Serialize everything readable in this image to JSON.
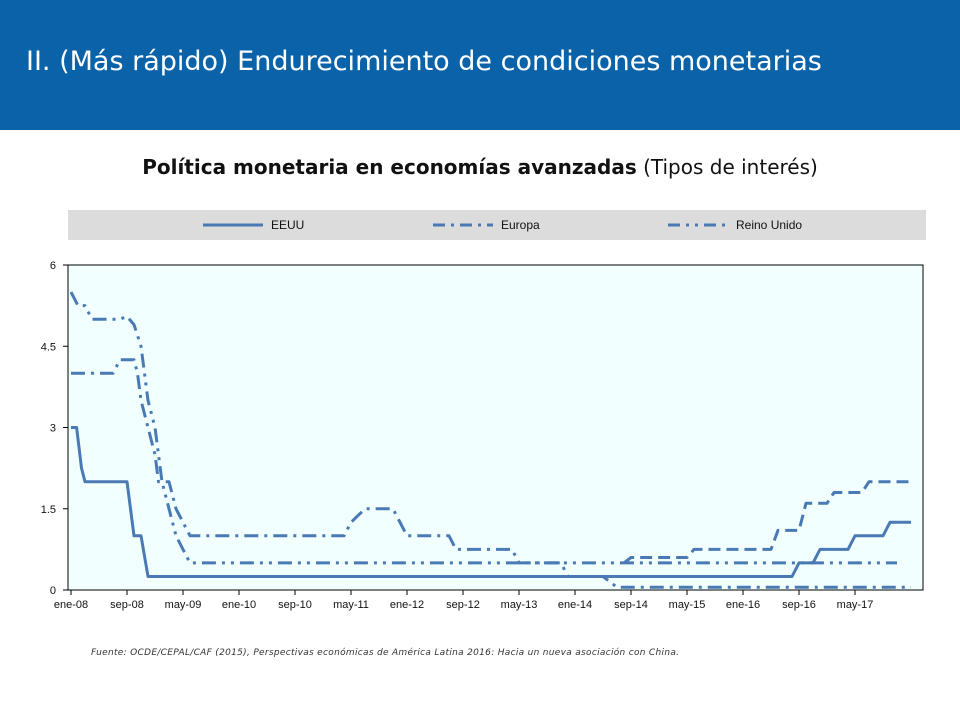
{
  "header": {
    "title": "II. (Más rápido) Endurecimiento de condiciones monetarias"
  },
  "subtitle": {
    "bold": "Política monetaria en economías avanzadas",
    "normal": " (Tipos de interés)"
  },
  "source": "Fuente: OCDE/CEPAL/CAF (2015), Perspectivas económicas de América Latina 2016: Hacia un nueva asociación con China.",
  "colors": {
    "header_bg": "#0a62a8",
    "series": "#4a7ab4",
    "plot_bg": "#f2ffff",
    "legend_bg": "#dcdcdc"
  },
  "chart_data": {
    "type": "line",
    "title": "",
    "xlabel": "",
    "ylabel": "",
    "ylim": [
      0,
      6
    ],
    "yticks": [
      "0",
      "1.5",
      "3",
      "4.5",
      "6"
    ],
    "xticks": [
      "ene-08",
      "sep-08",
      "may-09",
      "ene-10",
      "sep-10",
      "may-11",
      "ene-12",
      "sep-12",
      "may-13",
      "ene-14",
      "sep-14",
      "may-15",
      "ene-16",
      "sep-16",
      "may-17"
    ],
    "x_unit": "month index from ene-08",
    "legend_position": "top",
    "grid": false,
    "series": [
      {
        "name": "EEUU",
        "style": "solid",
        "points": [
          [
            0,
            3
          ],
          [
            0.8,
            3
          ],
          [
            1.5,
            2.25
          ],
          [
            2,
            2
          ],
          [
            2.5,
            2
          ],
          [
            8,
            2
          ],
          [
            9,
            1
          ],
          [
            10,
            1
          ],
          [
            11,
            0.25
          ],
          [
            83,
            0.25
          ],
          [
            84,
            0.25
          ],
          [
            95,
            0.25
          ],
          [
            96,
            0.25
          ],
          [
            103,
            0.25
          ],
          [
            104,
            0.5
          ],
          [
            106,
            0.5
          ],
          [
            107,
            0.75
          ],
          [
            111,
            0.75
          ],
          [
            112,
            1
          ],
          [
            116,
            1
          ],
          [
            117,
            1.25
          ],
          [
            120,
            1.25
          ]
        ]
      },
      {
        "name": "Europa",
        "style": "dashdot",
        "points": [
          [
            0,
            4
          ],
          [
            6,
            4
          ],
          [
            7,
            4.25
          ],
          [
            9,
            4.25
          ],
          [
            9.5,
            4
          ],
          [
            10,
            3.5
          ],
          [
            11,
            3
          ],
          [
            12,
            2.5
          ],
          [
            12.5,
            2
          ],
          [
            14,
            2
          ],
          [
            15,
            1.5
          ],
          [
            16,
            1.25
          ],
          [
            17,
            1
          ],
          [
            39,
            1
          ],
          [
            40,
            1.25
          ],
          [
            42,
            1.5
          ],
          [
            46,
            1.5
          ],
          [
            47,
            1.25
          ],
          [
            48,
            1
          ],
          [
            54,
            1
          ],
          [
            55,
            0.75
          ],
          [
            63,
            0.75
          ],
          [
            64,
            0.5
          ],
          [
            70,
            0.5
          ],
          [
            71,
            0.25
          ],
          [
            76,
            0.25
          ],
          [
            77,
            0.15
          ],
          [
            78,
            0.05
          ],
          [
            120,
            0.05
          ]
        ]
      },
      {
        "name": "Reino Unido",
        "style": "dashdotdot",
        "points": [
          [
            0,
            5.5
          ],
          [
            1,
            5.25
          ],
          [
            2,
            5.25
          ],
          [
            3,
            5
          ],
          [
            7,
            5
          ],
          [
            8,
            5.05
          ],
          [
            9,
            4.9
          ],
          [
            10,
            4.5
          ],
          [
            11,
            3.5
          ],
          [
            12,
            3
          ],
          [
            13,
            2
          ],
          [
            14,
            1.5
          ],
          [
            14.5,
            1.25
          ],
          [
            15,
            1
          ],
          [
            16,
            0.75
          ],
          [
            17,
            0.5
          ],
          [
            118,
            0.5
          ]
        ]
      },
      {
        "name": "",
        "style": "dashed",
        "points": [
          [
            79,
            0.5
          ],
          [
            80,
            0.6
          ],
          [
            88,
            0.6
          ],
          [
            89,
            0.75
          ],
          [
            100,
            0.75
          ],
          [
            101,
            1.1
          ],
          [
            104,
            1.1
          ],
          [
            105,
            1.6
          ],
          [
            108,
            1.6
          ],
          [
            109,
            1.8
          ],
          [
            113,
            1.8
          ],
          [
            114,
            2
          ],
          [
            120,
            2
          ]
        ]
      }
    ]
  },
  "labels": {
    "series_names": [
      "EEUU",
      "Europa",
      "Reino Unido"
    ]
  }
}
